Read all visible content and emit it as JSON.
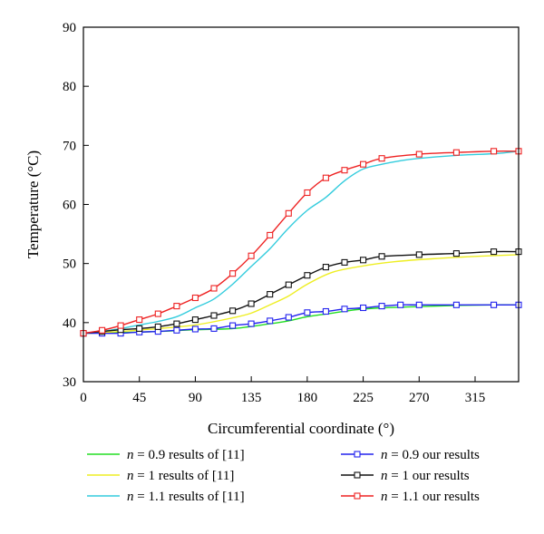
{
  "chart_data": {
    "type": "line",
    "xlabel": "Circumferential coordinate (°)",
    "ylabel": "Temperature (°C)",
    "xlim": [
      0,
      350
    ],
    "ylim": [
      30,
      90
    ],
    "xticks": [
      0,
      45,
      90,
      135,
      180,
      225,
      270,
      315
    ],
    "yticks": [
      30,
      40,
      50,
      60,
      70,
      80,
      90
    ],
    "grid": false,
    "legend_position": "bottom",
    "series": [
      {
        "name": "results of [11]",
        "n_label": "n",
        "n_value": "= 0.9",
        "color": "#22dd22",
        "marker": "none",
        "x": [
          0,
          30,
          60,
          90,
          120,
          150,
          165,
          180,
          200,
          220,
          240,
          270,
          300,
          330,
          350
        ],
        "y": [
          38.2,
          38.3,
          38.5,
          38.8,
          39.0,
          39.8,
          40.3,
          41.0,
          41.6,
          42.2,
          42.5,
          42.7,
          42.9,
          43.0,
          43.0
        ]
      },
      {
        "name": "results of [11]",
        "n_label": "n",
        "n_value": "= 1",
        "color": "#eeee22",
        "marker": "none",
        "x": [
          0,
          30,
          60,
          90,
          120,
          135,
          150,
          165,
          180,
          200,
          225,
          250,
          280,
          315,
          350
        ],
        "y": [
          38.2,
          38.5,
          39.0,
          39.6,
          40.8,
          41.6,
          43.0,
          44.5,
          46.5,
          48.5,
          49.6,
          50.3,
          50.8,
          51.2,
          51.5
        ]
      },
      {
        "name": "results of [11]",
        "n_label": "n",
        "n_value": "= 1.1",
        "color": "#33ccdd",
        "marker": "none",
        "x": [
          0,
          15,
          30,
          45,
          60,
          75,
          90,
          105,
          120,
          135,
          150,
          165,
          180,
          195,
          210,
          225,
          240,
          255,
          270,
          300,
          330,
          350
        ],
        "y": [
          38.2,
          38.5,
          39.0,
          39.6,
          40.2,
          41.0,
          42.5,
          44.0,
          46.5,
          49.5,
          52.5,
          56.0,
          59.0,
          61.2,
          64.0,
          66.0,
          66.8,
          67.4,
          67.8,
          68.3,
          68.6,
          69.0
        ]
      },
      {
        "name": "our results",
        "n_label": "n",
        "n_value": "= 0.9",
        "color": "#2222ee",
        "marker": "square",
        "x": [
          0,
          15,
          30,
          45,
          60,
          75,
          90,
          105,
          120,
          135,
          150,
          165,
          180,
          195,
          210,
          225,
          240,
          255,
          270,
          300,
          330,
          350
        ],
        "y": [
          38.2,
          38.2,
          38.2,
          38.4,
          38.5,
          38.7,
          38.9,
          39.0,
          39.5,
          39.8,
          40.3,
          40.9,
          41.7,
          41.9,
          42.3,
          42.5,
          42.8,
          43.0,
          43.0,
          43.0,
          43.0,
          43.0
        ]
      },
      {
        "name": "our results",
        "n_label": "n",
        "n_value": "= 1",
        "color": "#111111",
        "marker": "square",
        "x": [
          0,
          15,
          30,
          45,
          60,
          75,
          90,
          105,
          120,
          135,
          150,
          165,
          180,
          195,
          210,
          225,
          240,
          270,
          300,
          330,
          350
        ],
        "y": [
          38.2,
          38.5,
          38.8,
          39.0,
          39.3,
          39.8,
          40.5,
          41.2,
          42.0,
          43.2,
          44.8,
          46.4,
          48.0,
          49.4,
          50.2,
          50.6,
          51.2,
          51.5,
          51.7,
          52.0,
          52.0
        ]
      },
      {
        "name": "our results",
        "n_label": "n",
        "n_value": "= 1.1",
        "color": "#ee2222",
        "marker": "square",
        "x": [
          0,
          15,
          30,
          45,
          60,
          75,
          90,
          105,
          120,
          135,
          150,
          165,
          180,
          195,
          210,
          225,
          240,
          270,
          300,
          330,
          350
        ],
        "y": [
          38.2,
          38.7,
          39.5,
          40.5,
          41.5,
          42.8,
          44.2,
          45.8,
          48.3,
          51.3,
          54.8,
          58.5,
          62.0,
          64.5,
          65.8,
          66.8,
          67.8,
          68.5,
          68.8,
          69.0,
          69.0
        ]
      }
    ]
  }
}
